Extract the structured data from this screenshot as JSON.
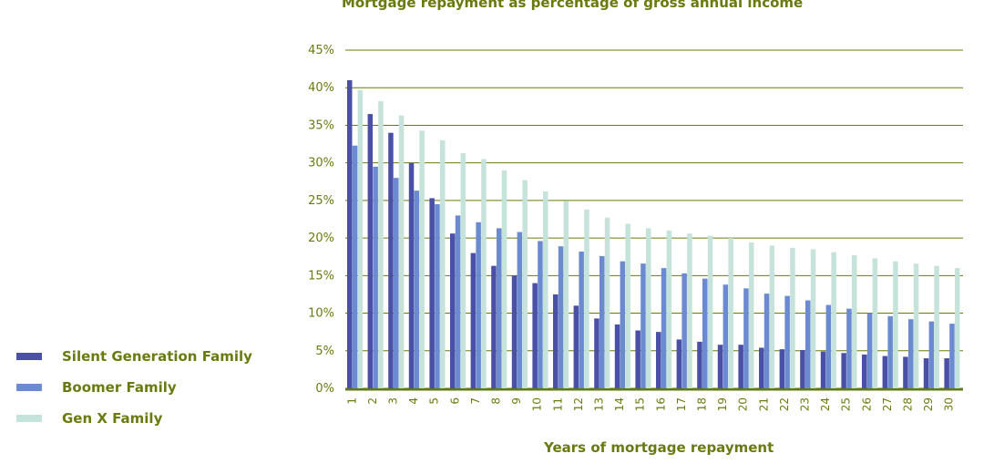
{
  "chart_data": {
    "type": "bar",
    "title": "Mortgage repayment as percentage of gross annual income",
    "xlabel": "Years of mortgage repayment",
    "ylabel": "",
    "ylim": [
      0,
      45
    ],
    "yticks": [
      "0%",
      "5%",
      "10%",
      "15%",
      "20%",
      "25%",
      "30%",
      "35%",
      "40%",
      "45%"
    ],
    "grid": true,
    "legend": "left",
    "categories": [
      "1",
      "2",
      "3",
      "4",
      "5",
      "6",
      "7",
      "8",
      "9",
      "10",
      "11",
      "12",
      "13",
      "14",
      "15",
      "16",
      "17",
      "18",
      "19",
      "20",
      "21",
      "22",
      "23",
      "24",
      "25",
      "26",
      "27",
      "28",
      "29",
      "30"
    ],
    "series": [
      {
        "name": "Silent Generation Family",
        "color": "#4a50a5",
        "values": [
          41,
          36.5,
          34,
          30,
          25.3,
          20.6,
          18,
          16.3,
          15,
          14,
          12.5,
          11,
          9.3,
          8.5,
          7.7,
          7.5,
          6.5,
          6.2,
          5.8,
          5.8,
          5.4,
          5.2,
          5.1,
          4.9,
          4.7,
          4.5,
          4.3,
          4.2,
          4.0,
          4.0
        ]
      },
      {
        "name": "Boomer Family",
        "color": "#6b8ad0",
        "values": [
          32.3,
          29.5,
          28,
          26.3,
          24.5,
          23,
          22.1,
          21.3,
          20.8,
          19.6,
          18.9,
          18.2,
          17.6,
          16.9,
          16.6,
          16,
          15.3,
          14.6,
          13.8,
          13.3,
          12.6,
          12.3,
          11.7,
          11.1,
          10.6,
          10,
          9.6,
          9.2,
          8.9,
          8.6
        ]
      },
      {
        "name": "Gen X Family",
        "color": "#c5e3da",
        "values": [
          39.7,
          38.2,
          36.3,
          34.3,
          33,
          31.3,
          30.5,
          29,
          27.7,
          26.2,
          24.9,
          23.8,
          22.7,
          21.9,
          21.3,
          21,
          20.6,
          20.3,
          20,
          19.4,
          19,
          18.7,
          18.5,
          18.1,
          17.7,
          17.3,
          16.9,
          16.6,
          16.3,
          16
        ]
      }
    ]
  }
}
